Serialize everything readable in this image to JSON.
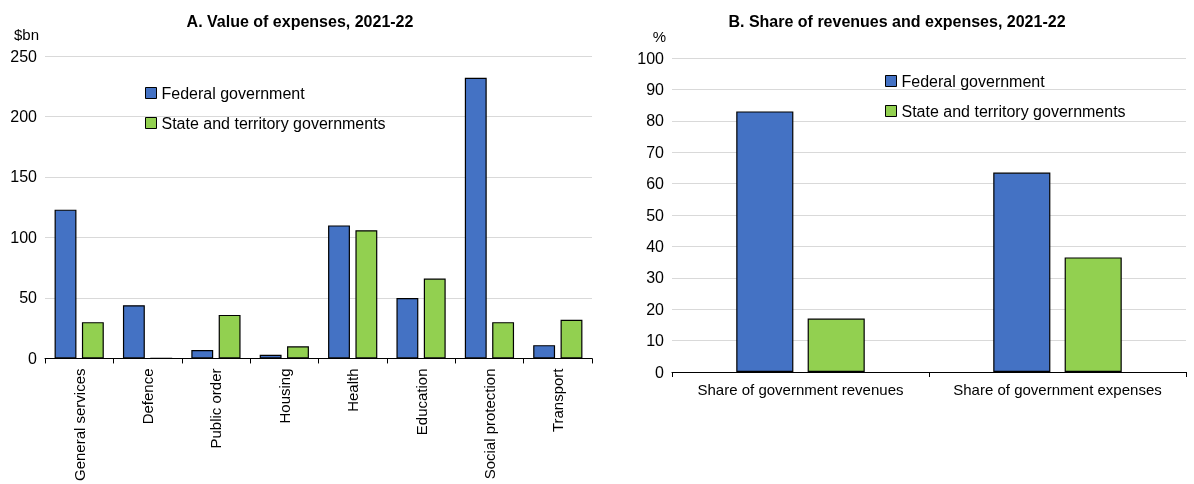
{
  "chart_data": [
    {
      "type": "bar",
      "title": "A. Value of expenses, 2021-22",
      "ylabel": "$bn",
      "categories": [
        "General services",
        "Defence",
        "Public order",
        "Housing",
        "Health",
        "Education",
        "Social protection",
        "Transport"
      ],
      "series": [
        {
          "name": "Federal government",
          "color": "#4472c4",
          "values": [
            123,
            44,
            7,
            3,
            110,
            50,
            232,
            11
          ]
        },
        {
          "name": "State and territory governments",
          "color": "#92d050",
          "values": [
            30,
            0,
            36,
            10,
            106,
            66,
            30,
            32
          ]
        }
      ],
      "ylim": [
        0,
        250
      ],
      "yticks": [
        0,
        50,
        100,
        150,
        200,
        250
      ],
      "grid": "y",
      "legend": "top"
    },
    {
      "type": "bar",
      "title": "B. Share of revenues and expenses, 2021-22",
      "ylabel": "%",
      "categories": [
        "Share of government revenues",
        "Share of government expenses"
      ],
      "series": [
        {
          "name": "Federal government",
          "color": "#4472c4",
          "values": [
            83,
            63.5
          ]
        },
        {
          "name": "State and territory governments",
          "color": "#92d050",
          "values": [
            17,
            36.5
          ]
        }
      ],
      "ylim": [
        0,
        100
      ],
      "yticks": [
        0,
        10,
        20,
        30,
        40,
        50,
        60,
        70,
        80,
        90,
        100
      ],
      "grid": "y",
      "legend": "top"
    }
  ]
}
